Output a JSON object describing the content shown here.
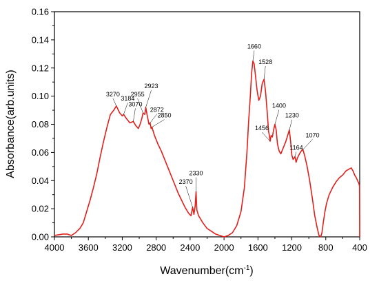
{
  "chart_data": {
    "type": "line",
    "title": "",
    "xlabel": "Wavenumber(cm",
    "xlabel_sup": "-1",
    "xlabel_close": ")",
    "ylabel": "Absorbance(arb.units)",
    "xlim": [
      4000,
      400
    ],
    "ylim": [
      0.0,
      0.16
    ],
    "x_reversed": true,
    "grid": false,
    "x_ticks": [
      4000,
      3600,
      3200,
      2800,
      2400,
      2000,
      1600,
      1200,
      800,
      400
    ],
    "x_tick_labels": [
      "4000",
      "3600",
      "3200",
      "2800",
      "2400",
      "2000",
      "1600",
      "1200",
      "800",
      "400"
    ],
    "y_ticks": [
      0.0,
      0.02,
      0.04,
      0.06,
      0.08,
      0.1,
      0.12,
      0.14,
      0.16
    ],
    "y_tick_labels": [
      "0.00",
      "0.02",
      "0.04",
      "0.06",
      "0.08",
      "0.10",
      "0.12",
      "0.14",
      "0.16"
    ],
    "line_color": "#e0201c",
    "series": [
      {
        "points": [
          [
            4000,
            0.001
          ],
          [
            3900,
            0.002
          ],
          [
            3850,
            0.002
          ],
          [
            3800,
            0.001
          ],
          [
            3750,
            0.003
          ],
          [
            3700,
            0.006
          ],
          [
            3660,
            0.01
          ],
          [
            3620,
            0.018
          ],
          [
            3580,
            0.026
          ],
          [
            3540,
            0.035
          ],
          [
            3500,
            0.045
          ],
          [
            3460,
            0.057
          ],
          [
            3420,
            0.068
          ],
          [
            3380,
            0.078
          ],
          [
            3340,
            0.087
          ],
          [
            3300,
            0.09
          ],
          [
            3270,
            0.093
          ],
          [
            3230,
            0.088
          ],
          [
            3200,
            0.086
          ],
          [
            3184,
            0.087
          ],
          [
            3150,
            0.084
          ],
          [
            3110,
            0.081
          ],
          [
            3070,
            0.082
          ],
          [
            3040,
            0.079
          ],
          [
            3010,
            0.077
          ],
          [
            2990,
            0.08
          ],
          [
            2970,
            0.084
          ],
          [
            2955,
            0.088
          ],
          [
            2935,
            0.087
          ],
          [
            2923,
            0.092
          ],
          [
            2905,
            0.086
          ],
          [
            2885,
            0.08
          ],
          [
            2872,
            0.081
          ],
          [
            2860,
            0.077
          ],
          [
            2850,
            0.078
          ],
          [
            2820,
            0.072
          ],
          [
            2780,
            0.066
          ],
          [
            2740,
            0.061
          ],
          [
            2700,
            0.055
          ],
          [
            2660,
            0.049
          ],
          [
            2620,
            0.043
          ],
          [
            2580,
            0.037
          ],
          [
            2540,
            0.031
          ],
          [
            2500,
            0.026
          ],
          [
            2460,
            0.021
          ],
          [
            2420,
            0.017
          ],
          [
            2390,
            0.015
          ],
          [
            2370,
            0.021
          ],
          [
            2355,
            0.016
          ],
          [
            2340,
            0.022
          ],
          [
            2330,
            0.032
          ],
          [
            2320,
            0.019
          ],
          [
            2300,
            0.015
          ],
          [
            2250,
            0.01
          ],
          [
            2200,
            0.006
          ],
          [
            2150,
            0.004
          ],
          [
            2100,
            0.002
          ],
          [
            2050,
            0.001
          ],
          [
            2000,
            0.0
          ],
          [
            1950,
            0.001
          ],
          [
            1900,
            0.003
          ],
          [
            1850,
            0.008
          ],
          [
            1800,
            0.018
          ],
          [
            1760,
            0.035
          ],
          [
            1730,
            0.06
          ],
          [
            1710,
            0.082
          ],
          [
            1690,
            0.1
          ],
          [
            1675,
            0.116
          ],
          [
            1660,
            0.125
          ],
          [
            1645,
            0.123
          ],
          [
            1630,
            0.115
          ],
          [
            1610,
            0.104
          ],
          [
            1590,
            0.097
          ],
          [
            1570,
            0.1
          ],
          [
            1550,
            0.109
          ],
          [
            1528,
            0.112
          ],
          [
            1510,
            0.103
          ],
          [
            1490,
            0.088
          ],
          [
            1475,
            0.075
          ],
          [
            1465,
            0.072
          ],
          [
            1456,
            0.068
          ],
          [
            1445,
            0.072
          ],
          [
            1430,
            0.071
          ],
          [
            1415,
            0.076
          ],
          [
            1400,
            0.08
          ],
          [
            1385,
            0.076
          ],
          [
            1370,
            0.066
          ],
          [
            1350,
            0.061
          ],
          [
            1330,
            0.059
          ],
          [
            1310,
            0.062
          ],
          [
            1290,
            0.065
          ],
          [
            1270,
            0.068
          ],
          [
            1250,
            0.072
          ],
          [
            1230,
            0.076
          ],
          [
            1215,
            0.068
          ],
          [
            1200,
            0.058
          ],
          [
            1185,
            0.055
          ],
          [
            1164,
            0.057
          ],
          [
            1150,
            0.053
          ],
          [
            1135,
            0.056
          ],
          [
            1110,
            0.059
          ],
          [
            1090,
            0.061
          ],
          [
            1070,
            0.062
          ],
          [
            1050,
            0.058
          ],
          [
            1020,
            0.05
          ],
          [
            990,
            0.04
          ],
          [
            960,
            0.028
          ],
          [
            930,
            0.015
          ],
          [
            900,
            0.006
          ],
          [
            880,
            0.001
          ],
          [
            860,
            0.0
          ],
          [
            845,
            0.003
          ],
          [
            830,
            0.01
          ],
          [
            810,
            0.018
          ],
          [
            790,
            0.024
          ],
          [
            760,
            0.03
          ],
          [
            720,
            0.035
          ],
          [
            680,
            0.039
          ],
          [
            640,
            0.042
          ],
          [
            600,
            0.044
          ],
          [
            560,
            0.047
          ],
          [
            530,
            0.048
          ],
          [
            500,
            0.049
          ],
          [
            480,
            0.047
          ],
          [
            460,
            0.044
          ],
          [
            440,
            0.042
          ],
          [
            425,
            0.04
          ],
          [
            410,
            0.038
          ],
          [
            402,
            0.036
          ],
          [
            400,
            0.0
          ]
        ]
      }
    ],
    "annotations": [
      {
        "label": "3270",
        "x": 3270,
        "y": 0.093
      },
      {
        "label": "3184",
        "x": 3184,
        "y": 0.087
      },
      {
        "label": "3070",
        "x": 3070,
        "y": 0.082
      },
      {
        "label": "2955",
        "x": 2955,
        "y": 0.088
      },
      {
        "label": "2923",
        "x": 2923,
        "y": 0.092
      },
      {
        "label": "2872",
        "x": 2872,
        "y": 0.081
      },
      {
        "label": "2850",
        "x": 2850,
        "y": 0.078
      },
      {
        "label": "2370",
        "x": 2370,
        "y": 0.021
      },
      {
        "label": "2330",
        "x": 2330,
        "y": 0.032
      },
      {
        "label": "1660",
        "x": 1660,
        "y": 0.125
      },
      {
        "label": "1528",
        "x": 1528,
        "y": 0.112
      },
      {
        "label": "1400",
        "x": 1400,
        "y": 0.08
      },
      {
        "label": "1456",
        "x": 1456,
        "y": 0.068
      },
      {
        "label": "1230",
        "x": 1230,
        "y": 0.076
      },
      {
        "label": "1164",
        "x": 1164,
        "y": 0.057
      },
      {
        "label": "1070",
        "x": 1070,
        "y": 0.062
      }
    ]
  }
}
